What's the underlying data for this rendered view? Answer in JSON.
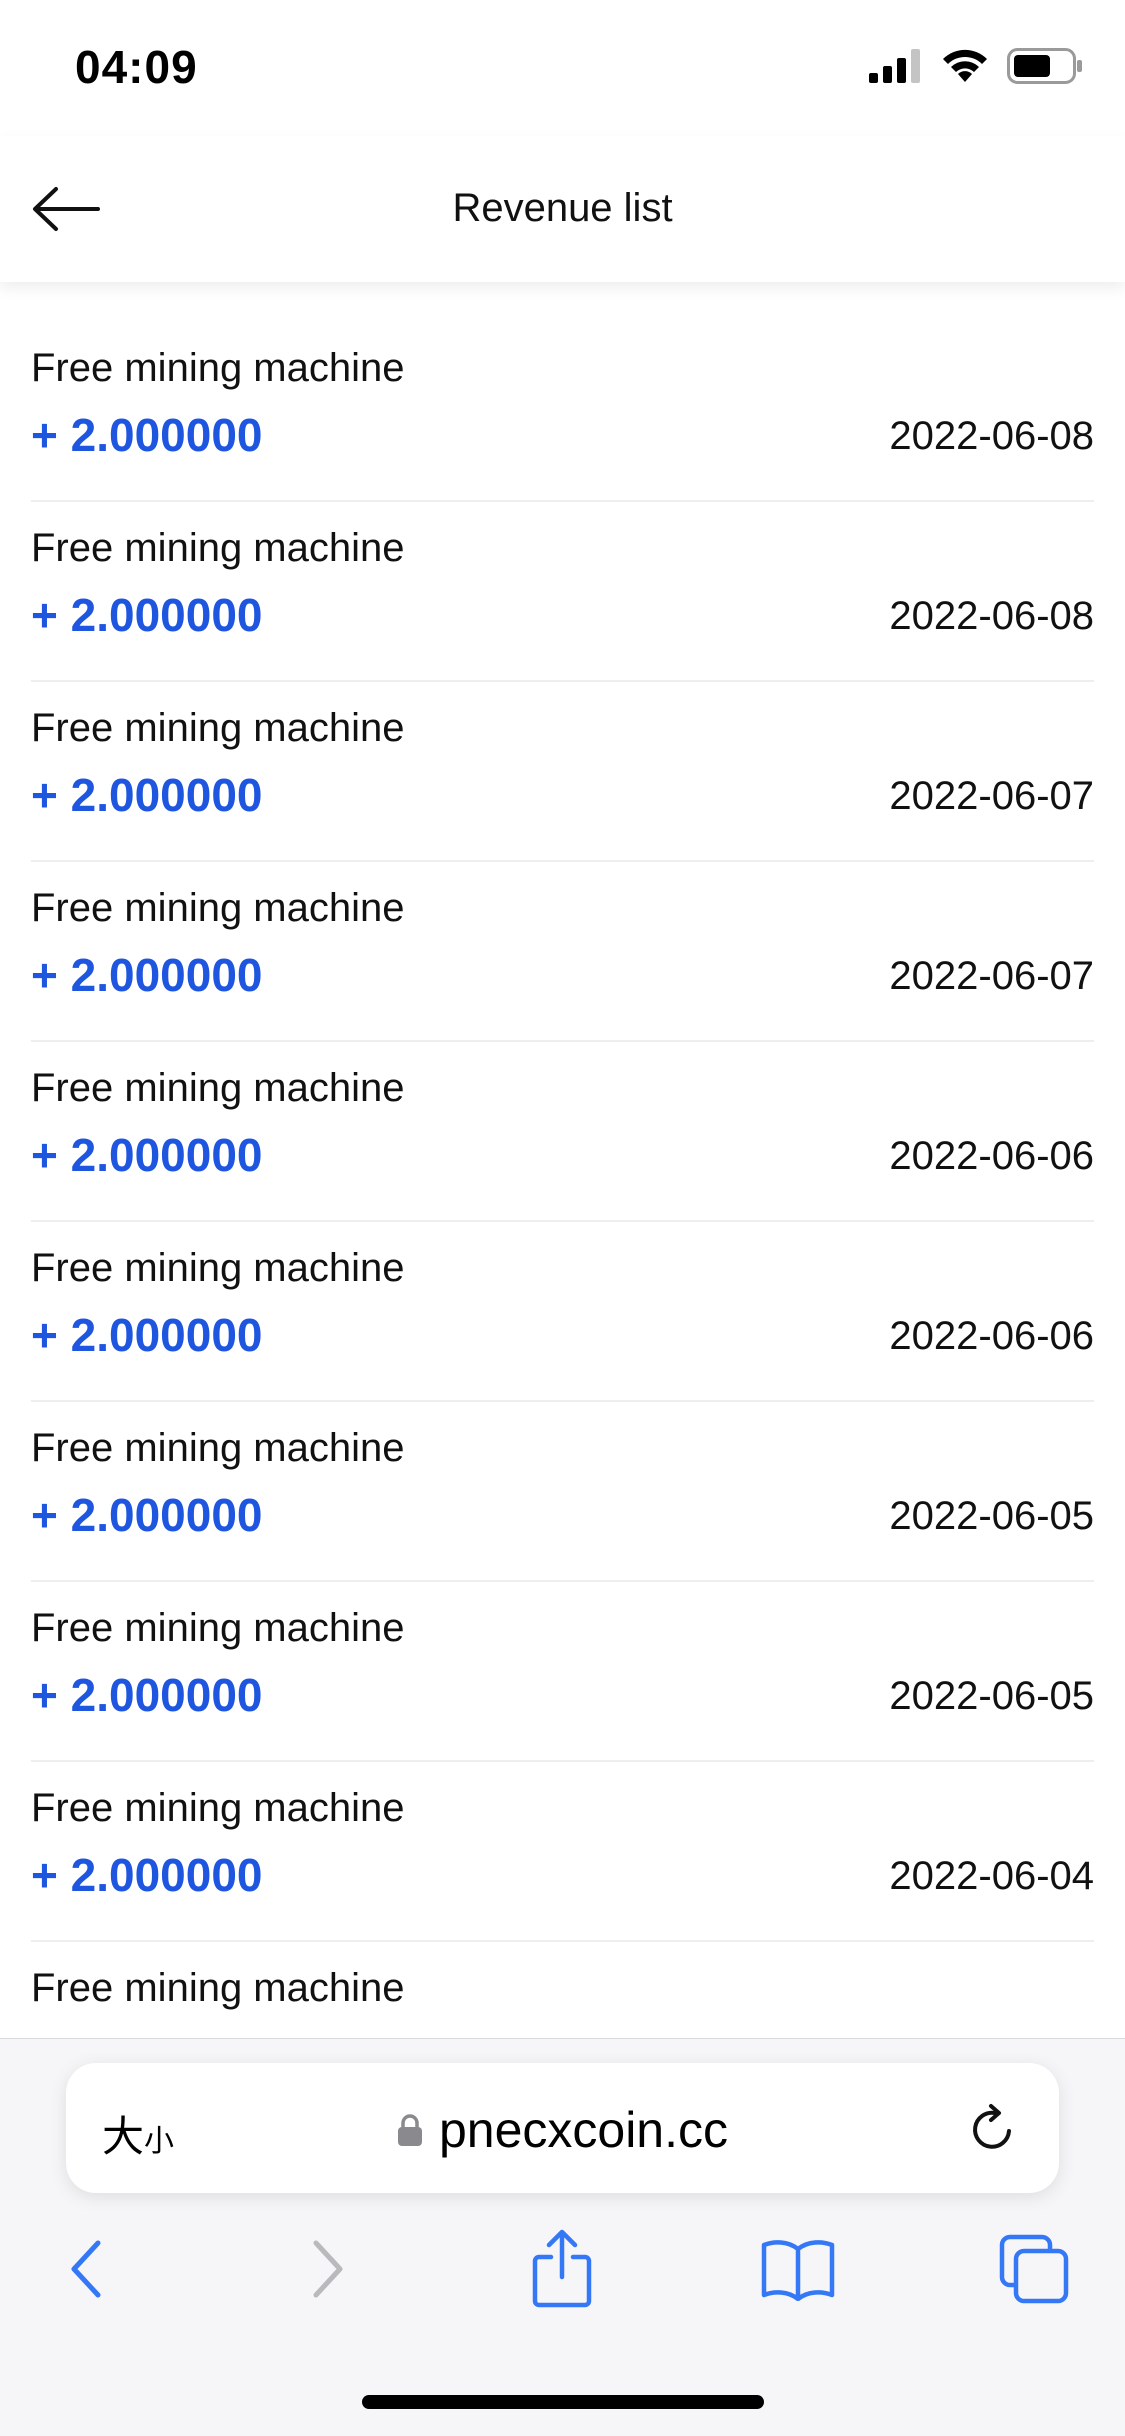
{
  "status_bar": {
    "time": "04:09"
  },
  "header": {
    "title": "Revenue list"
  },
  "list": {
    "items": [
      {
        "title": "Free mining machine",
        "amount": "+ 2.000000",
        "date": "2022-06-08"
      },
      {
        "title": "Free mining machine",
        "amount": "+ 2.000000",
        "date": "2022-06-08"
      },
      {
        "title": "Free mining machine",
        "amount": "+ 2.000000",
        "date": "2022-06-07"
      },
      {
        "title": "Free mining machine",
        "amount": "+ 2.000000",
        "date": "2022-06-07"
      },
      {
        "title": "Free mining machine",
        "amount": "+ 2.000000",
        "date": "2022-06-06"
      },
      {
        "title": "Free mining machine",
        "amount": "+ 2.000000",
        "date": "2022-06-06"
      },
      {
        "title": "Free mining machine",
        "amount": "+ 2.000000",
        "date": "2022-06-05"
      },
      {
        "title": "Free mining machine",
        "amount": "+ 2.000000",
        "date": "2022-06-05"
      },
      {
        "title": "Free mining machine",
        "amount": "+ 2.000000",
        "date": "2022-06-04"
      },
      {
        "title": "Free mining machine"
      }
    ]
  },
  "browser": {
    "text_size_big": "大",
    "text_size_small": "小",
    "url": "pnecxcoin.cc"
  },
  "icons": {
    "signal": "cellular-signal-icon",
    "wifi": "wifi-icon",
    "battery": "battery-icon",
    "back": "arrow-left-icon",
    "lock": "lock-icon",
    "reload": "reload-icon",
    "nav_back": "chevron-left-icon",
    "nav_forward": "chevron-right-icon",
    "share": "share-icon",
    "bookmarks": "book-icon",
    "tabs": "tabs-icon"
  },
  "colors": {
    "amount": "#1e56e0",
    "safari_accent": "#3478f6"
  }
}
